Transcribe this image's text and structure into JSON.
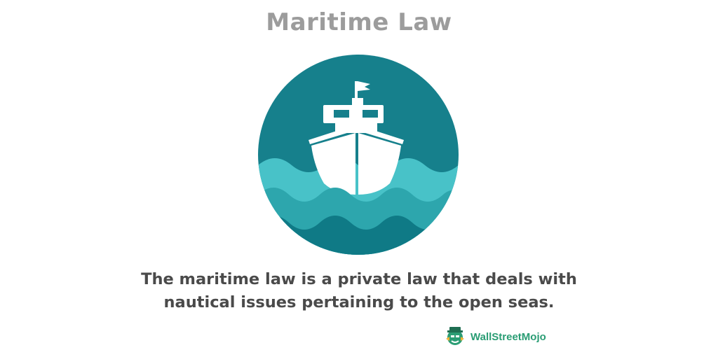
{
  "header": {
    "title": "Maritime Law"
  },
  "illustration": {
    "icon": "ship-on-waves-icon",
    "colors": {
      "sky": "#16808c",
      "wave_light": "#48c2c8",
      "wave_mid": "#2da6ad",
      "wave_dark": "#0f7a86",
      "ship": "#ffffff"
    }
  },
  "description": {
    "line1": "The maritime law is a private law that deals with",
    "line2": "nautical issues pertaining to the open seas."
  },
  "brand": {
    "name": "WallStreetMojo",
    "icon": "wallstreetmojo-logo-icon",
    "color": "#2a9d74"
  }
}
